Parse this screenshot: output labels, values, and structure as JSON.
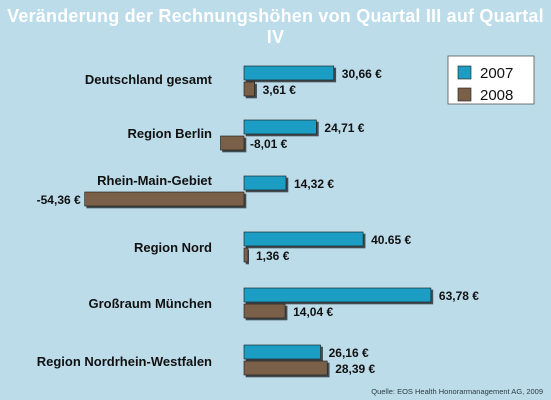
{
  "chart_data": {
    "type": "bar",
    "orientation": "horizontal",
    "title": "Veränderung der Rechnungshöhen von Quartal III auf Quartal IV",
    "categories": [
      "Deutschland gesamt",
      "Region Berlin",
      "Rhein-Main-Gebiet",
      "Region Nord",
      "Großraum München",
      "Region Nordrhein-Westfalen"
    ],
    "series": [
      {
        "name": "2007",
        "color": "#1e9dc4",
        "values": [
          30.66,
          24.71,
          14.32,
          40.65,
          63.78,
          26.16
        ],
        "labels": [
          "30,66 €",
          "24,71 €",
          "14,32 €",
          "40.65 €",
          "63,78 €",
          "26,16 €"
        ]
      },
      {
        "name": "2008",
        "color": "#7a5f49",
        "values": [
          3.61,
          -8.01,
          -54.36,
          1.36,
          14.04,
          28.39
        ],
        "labels": [
          "3,61 €",
          "-8,01 €",
          "-54,36 €",
          "1,36 €",
          "14,04 €",
          "28,39 €"
        ]
      }
    ],
    "legend_position": "top-right",
    "grid": false,
    "xlim": [
      -54.36,
      63.78
    ]
  },
  "source": "Quelle: EOS Health Honorarmanagement AG, 2009"
}
